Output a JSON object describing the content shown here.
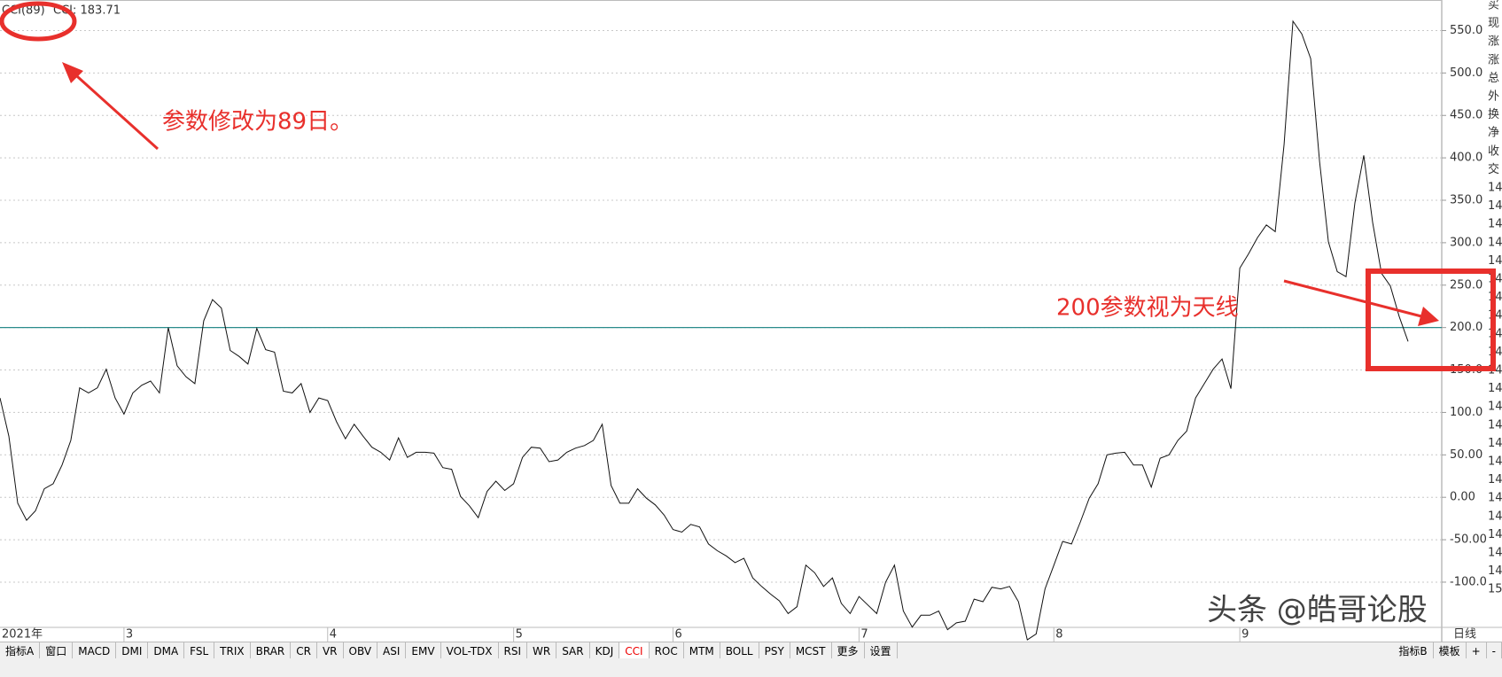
{
  "chart_data": {
    "type": "line",
    "indicator": "CCI(89)",
    "readout": "CCI: 183.71",
    "categories": [
      "2021年",
      null,
      null,
      null,
      null,
      null,
      null,
      null,
      null,
      null,
      null,
      null,
      null,
      null,
      "3",
      null,
      null,
      null,
      null,
      null,
      null,
      null,
      null,
      null,
      null,
      null,
      null,
      null,
      null,
      null,
      null,
      null,
      null,
      null,
      null,
      null,
      null,
      "4",
      null,
      null,
      null,
      null,
      null,
      null,
      null,
      null,
      null,
      null,
      null,
      null,
      null,
      null,
      null,
      null,
      null,
      null,
      null,
      null,
      "5",
      null,
      null,
      null,
      null,
      null,
      null,
      null,
      null,
      null,
      null,
      null,
      null,
      null,
      null,
      null,
      null,
      null,
      "6",
      null,
      null,
      null,
      null,
      null,
      null,
      null,
      null,
      null,
      null,
      null,
      null,
      null,
      null,
      null,
      null,
      null,
      null,
      null,
      null,
      "7",
      null,
      null,
      null,
      null,
      null,
      null,
      null,
      null,
      null,
      null,
      null,
      null,
      null,
      null,
      null,
      null,
      null,
      null,
      null,
      null,
      null,
      "8",
      null,
      null,
      null,
      null,
      null,
      null,
      null,
      null,
      null,
      null,
      null,
      null,
      null,
      null,
      null,
      null,
      null,
      null,
      null,
      null,
      "9",
      null,
      null,
      null,
      null,
      null,
      null,
      null,
      null,
      null,
      null,
      null,
      null,
      null,
      null,
      null,
      null,
      null,
      null,
      null
    ],
    "series": [
      {
        "name": "CCI",
        "color": "#111111",
        "values": [
          117,
          72,
          -7,
          -27,
          -16,
          10,
          16,
          38,
          67,
          129,
          123,
          129,
          151,
          117,
          98,
          123,
          132,
          137,
          123,
          200,
          155,
          142,
          134,
          208,
          233,
          223,
          173,
          166,
          157,
          199,
          174,
          171,
          125,
          123,
          134,
          100,
          117,
          114,
          89,
          69,
          86,
          72,
          59,
          53,
          44,
          70,
          47,
          53,
          53,
          52,
          35,
          33,
          1,
          -10,
          -24,
          7,
          19,
          8,
          16,
          47,
          59,
          58,
          42,
          44,
          53,
          58,
          61,
          67,
          86,
          14,
          -7,
          -7,
          10,
          -1,
          -9,
          -21,
          -38,
          -41,
          -32,
          -35,
          -55,
          -63,
          -69,
          -77,
          -72,
          -95,
          -105,
          -114,
          -122,
          -137,
          -129,
          -80,
          -89,
          -105,
          -95,
          -125,
          -137,
          -117,
          -127,
          -137,
          -100,
          -80,
          -134,
          -153,
          -139,
          -139,
          -134,
          -156,
          -148,
          -146,
          -120,
          -123,
          -106,
          -108,
          -105,
          -123,
          -168,
          -161,
          -108,
          -80,
          -52,
          -55,
          -29,
          -1,
          16,
          50,
          52,
          53,
          38,
          38,
          12,
          46,
          50,
          67,
          78,
          117,
          134,
          151,
          163,
          128,
          270,
          287,
          306,
          321,
          313,
          416,
          561,
          546,
          517,
          396,
          301,
          266,
          260,
          347,
          403,
          324,
          264,
          249,
          213,
          183.71
        ]
      }
    ],
    "ylim": [
      -170,
      586
    ],
    "yticks": [
      {
        "value": 550,
        "label": "550.0"
      },
      {
        "value": 500,
        "label": "500.0"
      },
      {
        "value": 450,
        "label": "450.0"
      },
      {
        "value": 400,
        "label": "400.0"
      },
      {
        "value": 350,
        "label": "350.0"
      },
      {
        "value": 300,
        "label": "300.0"
      },
      {
        "value": 250,
        "label": "250.0"
      },
      {
        "value": 200,
        "label": "200.0"
      },
      {
        "value": 150,
        "label": "150.0"
      },
      {
        "value": 100,
        "label": "100.0"
      },
      {
        "value": 50,
        "label": "50.00"
      },
      {
        "value": 0,
        "label": "0.00"
      },
      {
        "value": -50,
        "label": "-50.00"
      },
      {
        "value": -100,
        "label": "-100.0"
      }
    ],
    "grid": true,
    "reference_line": {
      "value": 200,
      "color": "#2a8c8c"
    },
    "annotations": [
      "参数修改为89日。",
      "200参数视为天线"
    ],
    "annotation_color": "#e8302c",
    "watermark": "头条 @皓哥论股",
    "period": "日线",
    "side_panel": [
      "买",
      "现",
      "涨",
      "涨",
      "总",
      "外",
      "换",
      "净",
      "收",
      "交",
      "14",
      "14",
      "14",
      "14",
      "14",
      "14",
      "14",
      "14",
      "14",
      "14",
      "14",
      "14",
      "14",
      "14",
      "14",
      "14",
      "14",
      "14",
      "14",
      "14",
      "14",
      "14",
      "15"
    ],
    "tabs": [
      "指标A",
      "窗口",
      "MACD",
      "DMI",
      "DMA",
      "FSL",
      "TRIX",
      "BRAR",
      "CR",
      "VR",
      "OBV",
      "ASI",
      "EMV",
      "VOL-TDX",
      "RSI",
      "WR",
      "SAR",
      "KDJ",
      "CCI",
      "ROC",
      "MTM",
      "BOLL",
      "PSY",
      "MCST",
      "更多",
      "设置"
    ],
    "active_tab": 18,
    "right_tabs": [
      "指标B",
      "模板",
      "+",
      "-"
    ]
  }
}
